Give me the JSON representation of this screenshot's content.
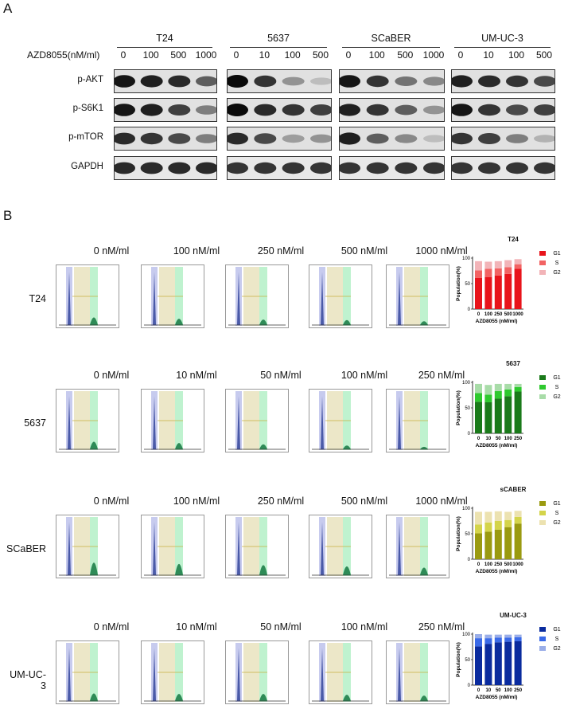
{
  "panel_a": {
    "letter": "A",
    "treatment_label": "AZD8055(nM/ml)",
    "groups": [
      {
        "name": "T24",
        "doses": [
          "0",
          "100",
          "500",
          "1000"
        ]
      },
      {
        "name": "5637",
        "doses": [
          "0",
          "10",
          "100",
          "500"
        ]
      },
      {
        "name": "SCaBER",
        "doses": [
          "0",
          "100",
          "500",
          "1000"
        ]
      },
      {
        "name": "UM-UC-3",
        "doses": [
          "0",
          "10",
          "100",
          "500"
        ]
      }
    ],
    "proteins": [
      "p-AKT",
      "p-S6K1",
      "p-mTOR",
      "GAPDH"
    ],
    "band_intensity": [
      [
        [
          0.95,
          0.9,
          0.85,
          0.6
        ],
        [
          1.0,
          0.8,
          0.35,
          0.15
        ],
        [
          0.95,
          0.8,
          0.5,
          0.4
        ],
        [
          0.9,
          0.85,
          0.8,
          0.7
        ]
      ],
      [
        [
          0.95,
          0.9,
          0.75,
          0.45
        ],
        [
          1.0,
          0.85,
          0.8,
          0.75
        ],
        [
          0.9,
          0.8,
          0.6,
          0.35
        ],
        [
          0.95,
          0.8,
          0.7,
          0.75
        ]
      ],
      [
        [
          0.85,
          0.8,
          0.7,
          0.45
        ],
        [
          0.85,
          0.7,
          0.3,
          0.35
        ],
        [
          0.9,
          0.6,
          0.4,
          0.15
        ],
        [
          0.8,
          0.75,
          0.45,
          0.2
        ]
      ],
      [
        [
          0.85,
          0.85,
          0.85,
          0.85
        ],
        [
          0.8,
          0.8,
          0.8,
          0.8
        ],
        [
          0.8,
          0.8,
          0.8,
          0.8
        ],
        [
          0.8,
          0.8,
          0.8,
          0.8
        ]
      ]
    ]
  },
  "panel_b": {
    "letter": "B",
    "rows": [
      {
        "cell": "T24",
        "concs": [
          "0 nM/ml",
          "100 nM/ml",
          "250 nM/ml",
          "500 nM/ml",
          "1000 nM/ml"
        ],
        "g2": [
          0.3,
          0.25,
          0.22,
          0.2,
          0.15
        ]
      },
      {
        "cell": "5637",
        "concs": [
          "0 nM/ml",
          "10 nM/ml",
          "50 nM/ml",
          "100 nM/ml",
          "250 nM/ml"
        ],
        "g2": [
          0.3,
          0.25,
          0.2,
          0.15,
          0.1
        ]
      },
      {
        "cell": "SCaBER",
        "concs": [
          "0 nM/ml",
          "100 nM/ml",
          "250 nM/ml",
          "500 nM/ml",
          "1000 nM/ml"
        ],
        "g2": [
          0.5,
          0.45,
          0.4,
          0.35,
          0.3
        ]
      },
      {
        "cell": "UM-UC-3",
        "concs": [
          "0 nM/ml",
          "10 nM/ml",
          "50 nM/ml",
          "100 nM/ml",
          "250 nM/ml"
        ],
        "g2": [
          0.3,
          0.28,
          0.28,
          0.25,
          0.22
        ]
      }
    ]
  },
  "chart_data": [
    {
      "type": "bar",
      "stacked": true,
      "title": "T24",
      "ylabel": "Population(%)",
      "xlabel": "AZD8055 (nM/ml)",
      "categories": [
        "0",
        "100",
        "250",
        "500",
        "1000"
      ],
      "ylim": [
        0,
        100
      ],
      "yticks": [
        "0",
        "50",
        "100"
      ],
      "series": [
        {
          "name": "G1",
          "values": [
            61,
            63,
            66,
            69,
            79
          ]
        },
        {
          "name": "S",
          "values": [
            15,
            16,
            14,
            13,
            9
          ]
        },
        {
          "name": "G2",
          "values": [
            18,
            14,
            14,
            14,
            10
          ]
        }
      ],
      "colors": [
        "#e8141b",
        "#f26363",
        "#f2b4b8"
      ],
      "legend": "right"
    },
    {
      "type": "bar",
      "stacked": true,
      "title": "5637",
      "ylabel": "Population(%)",
      "xlabel": "AZD8055 (nM/ml)",
      "categories": [
        "0",
        "10",
        "50",
        "100",
        "250"
      ],
      "ylim": [
        0,
        100
      ],
      "yticks": [
        "0",
        "50",
        "100"
      ],
      "series": [
        {
          "name": "G1",
          "values": [
            62,
            61,
            68,
            73,
            82
          ]
        },
        {
          "name": "S",
          "values": [
            17,
            15,
            15,
            13,
            9
          ]
        },
        {
          "name": "G2",
          "values": [
            18,
            19,
            14,
            11,
            6
          ]
        }
      ],
      "colors": [
        "#1a7a1a",
        "#2ec92e",
        "#a8dca8"
      ],
      "legend": "right"
    },
    {
      "type": "bar",
      "stacked": true,
      "title": "sCABER",
      "ylabel": "Population(%)",
      "xlabel": "AZD8055 (nM/ml)",
      "categories": [
        "0",
        "100",
        "250",
        "500",
        "1000"
      ],
      "ylim": [
        0,
        100
      ],
      "yticks": [
        "0",
        "50",
        "100"
      ],
      "series": [
        {
          "name": "G1",
          "values": [
            51,
            54,
            58,
            63,
            70
          ]
        },
        {
          "name": "S",
          "values": [
            17,
            18,
            17,
            14,
            13
          ]
        },
        {
          "name": "G2",
          "values": [
            25,
            21,
            19,
            16,
            12
          ]
        }
      ],
      "colors": [
        "#9a9a10",
        "#d4d44a",
        "#ece2b0"
      ],
      "legend": "right"
    },
    {
      "type": "bar",
      "stacked": true,
      "title": "UM-UC-3",
      "ylabel": "Population(%)",
      "xlabel": "AZD8055 (nM/ml)",
      "categories": [
        "0",
        "10",
        "50",
        "100",
        "250"
      ],
      "ylim": [
        0,
        100
      ],
      "yticks": [
        "0",
        "50",
        "100"
      ],
      "series": [
        {
          "name": "G1",
          "values": [
            76,
            81,
            84,
            85,
            86
          ]
        },
        {
          "name": "S",
          "values": [
            16,
            11,
            9,
            8,
            8
          ]
        },
        {
          "name": "G2",
          "values": [
            8,
            7,
            6,
            6,
            5
          ]
        }
      ],
      "colors": [
        "#0a2b9e",
        "#3a6ae8",
        "#9aaee8"
      ],
      "legend": "right"
    }
  ]
}
